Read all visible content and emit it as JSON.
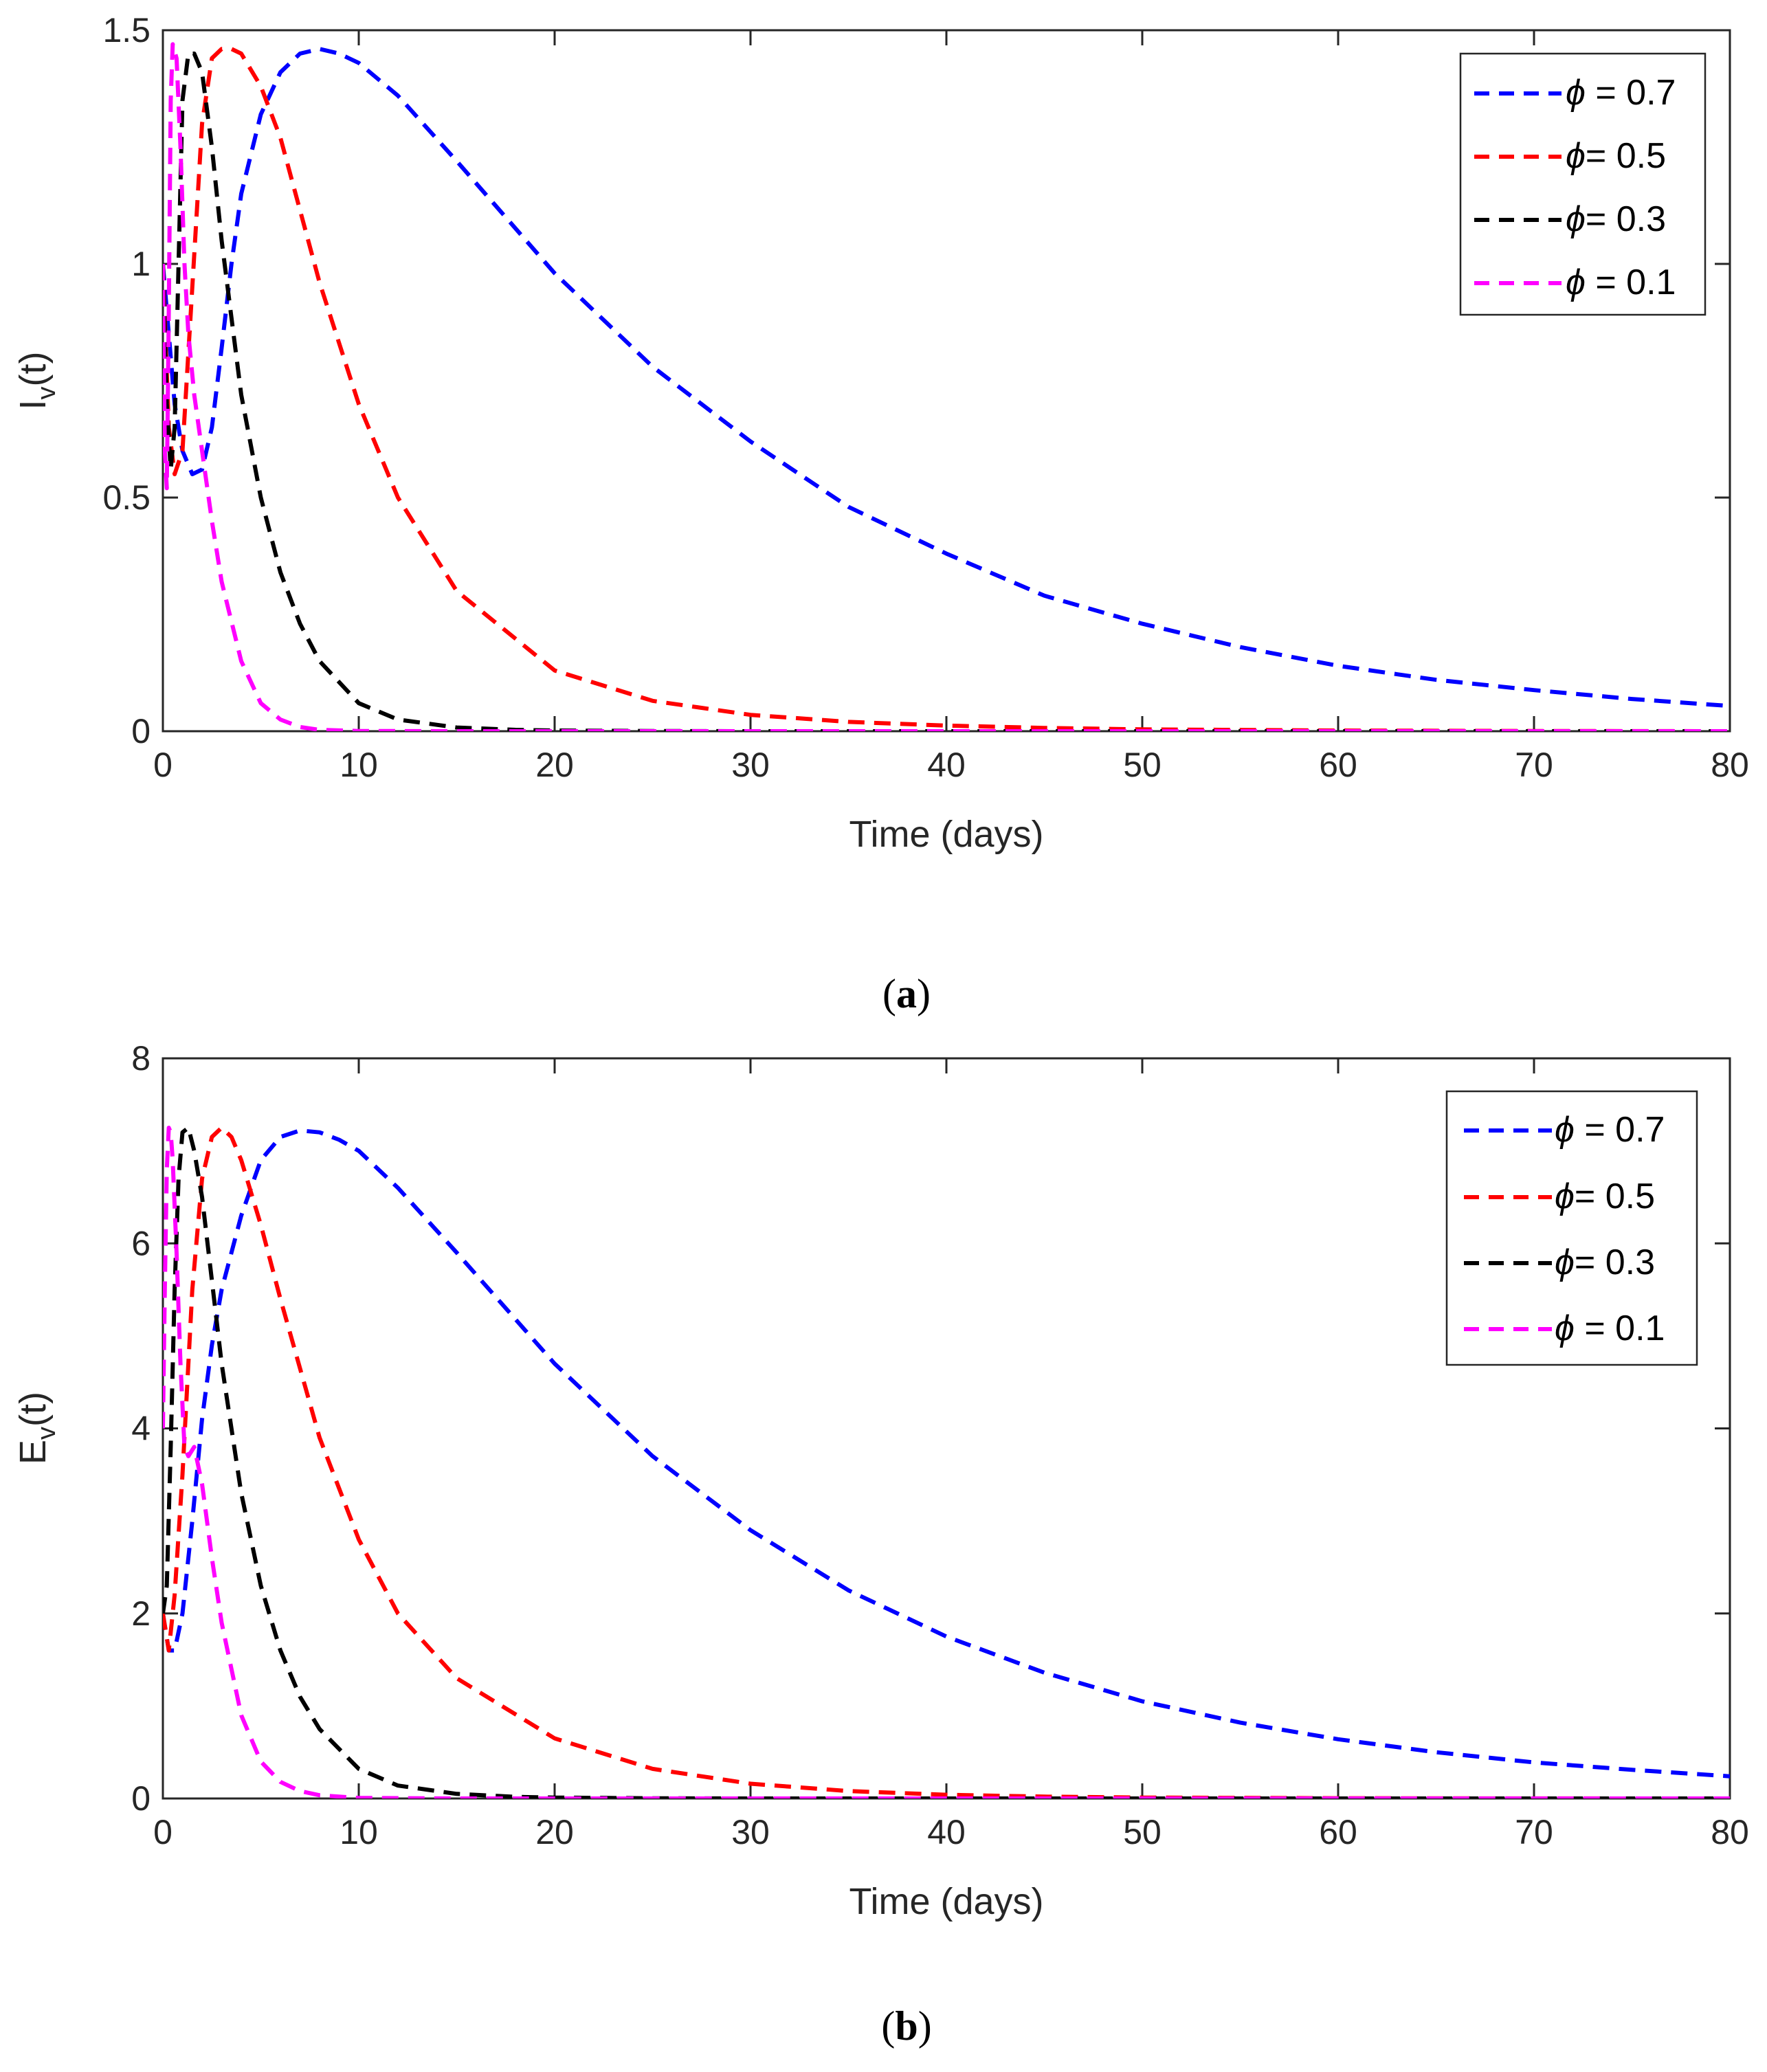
{
  "colors": {
    "series": [
      "#0000ff",
      "#ff0000",
      "#000000",
      "#ff00ff"
    ],
    "axis": "#262626",
    "background": "#ffffff"
  },
  "chart_data": [
    {
      "id": "a",
      "type": "line",
      "panel_label": "(a)",
      "panel_letter": "a",
      "xlabel": "Time (days)",
      "ylabel": "I_v(t)",
      "ylabel_main": "I",
      "ylabel_sub": "v",
      "ylabel_rest": "(t)",
      "xlim": [
        0,
        80
      ],
      "ylim": [
        0,
        1.5
      ],
      "xticks": [
        0,
        10,
        20,
        30,
        40,
        50,
        60,
        70,
        80
      ],
      "xtick_labels": [
        "0",
        "10",
        "20",
        "30",
        "40",
        "50",
        "60",
        "70",
        "80"
      ],
      "yticks": [
        0,
        0.5,
        1,
        1.5
      ],
      "ytick_labels": [
        "0",
        "0.5",
        "1",
        "1.5"
      ],
      "legend_position": "top-right",
      "series": [
        {
          "name": "ϕ = 0.7",
          "symbol": "ϕ",
          "rest": " = 0.7",
          "phi": 0.7,
          "x": [
            0,
            0.3,
            0.6,
            1,
            1.5,
            2,
            2.5,
            3,
            3.5,
            4,
            5,
            6,
            7,
            8,
            9,
            10,
            12,
            15,
            20,
            25,
            30,
            35,
            40,
            45,
            50,
            55,
            60,
            65,
            70,
            75,
            80
          ],
          "y": [
            1.0,
            0.85,
            0.7,
            0.6,
            0.55,
            0.56,
            0.65,
            0.82,
            1.0,
            1.15,
            1.32,
            1.41,
            1.45,
            1.46,
            1.45,
            1.43,
            1.36,
            1.22,
            0.98,
            0.78,
            0.62,
            0.48,
            0.38,
            0.29,
            0.23,
            0.18,
            0.14,
            0.11,
            0.088,
            0.069,
            0.054
          ]
        },
        {
          "name": "ϕ= 0.5",
          "symbol": "ϕ",
          "rest": "= 0.5",
          "phi": 0.5,
          "x": [
            0,
            0.3,
            0.6,
            1,
            1.5,
            2,
            2.5,
            3,
            3.5,
            4,
            5,
            6,
            8,
            10,
            12,
            15,
            20,
            25,
            30,
            35,
            40,
            45,
            50,
            60,
            70,
            80
          ],
          "y": [
            1.0,
            0.65,
            0.55,
            0.6,
            0.95,
            1.3,
            1.44,
            1.46,
            1.46,
            1.45,
            1.38,
            1.27,
            0.96,
            0.7,
            0.5,
            0.3,
            0.13,
            0.065,
            0.035,
            0.02,
            0.012,
            0.007,
            0.004,
            0.0015,
            0.0005,
            0.0
          ]
        },
        {
          "name": "ϕ= 0.3",
          "symbol": "ϕ",
          "rest": "= 0.3",
          "phi": 0.3,
          "x": [
            0,
            0.2,
            0.4,
            0.6,
            0.8,
            1.0,
            1.3,
            1.6,
            2.0,
            2.5,
            3,
            4,
            5,
            6,
            7,
            8,
            10,
            12,
            15,
            18,
            20,
            25,
            30,
            40,
            50,
            60,
            70,
            80
          ],
          "y": [
            1.0,
            0.7,
            0.56,
            0.65,
            1.0,
            1.35,
            1.45,
            1.45,
            1.41,
            1.25,
            1.05,
            0.72,
            0.5,
            0.34,
            0.23,
            0.15,
            0.06,
            0.025,
            0.008,
            0.003,
            0.0015,
            0.0005,
            0.0,
            0.0,
            0.0,
            0.0,
            0.0,
            0.0
          ]
        },
        {
          "name": "ϕ = 0.1",
          "symbol": "ϕ",
          "rest": " = 0.1",
          "phi": 0.1,
          "x": [
            0,
            0.1,
            0.2,
            0.3,
            0.4,
            0.5,
            0.7,
            0.9,
            1.1,
            1.3,
            1.6,
            2.0,
            2.5,
            3,
            4,
            5,
            6,
            7,
            8,
            10,
            15,
            20,
            30,
            40,
            50,
            60,
            70,
            80
          ],
          "y": [
            1.0,
            0.6,
            0.52,
            0.9,
            1.35,
            1.47,
            1.44,
            1.25,
            1.0,
            0.85,
            0.72,
            0.6,
            0.45,
            0.32,
            0.15,
            0.06,
            0.025,
            0.009,
            0.003,
            0.0005,
            0.0,
            0.0,
            0.0,
            0.0,
            0.0,
            0.0,
            0.0,
            0.0
          ]
        }
      ]
    },
    {
      "id": "b",
      "type": "line",
      "panel_label": "(b)",
      "panel_letter": "b",
      "xlabel": "Time (days)",
      "ylabel": "E_v(t)",
      "ylabel_main": "E",
      "ylabel_sub": "v",
      "ylabel_rest": "(t)",
      "xlim": [
        0,
        80
      ],
      "ylim": [
        0,
        8
      ],
      "xticks": [
        0,
        10,
        20,
        30,
        40,
        50,
        60,
        70,
        80
      ],
      "xtick_labels": [
        "0",
        "10",
        "20",
        "30",
        "40",
        "50",
        "60",
        "70",
        "80"
      ],
      "yticks": [
        0,
        2,
        4,
        6,
        8
      ],
      "ytick_labels": [
        "0",
        "2",
        "4",
        "6",
        "8"
      ],
      "legend_position": "top-right",
      "series": [
        {
          "name": "ϕ = 0.7",
          "symbol": "ϕ",
          "rest": " = 0.7",
          "phi": 0.7,
          "x": [
            0,
            0.3,
            0.6,
            1,
            1.5,
            2,
            2.5,
            3,
            4,
            5,
            6,
            7,
            8,
            9,
            10,
            12,
            15,
            20,
            25,
            30,
            35,
            40,
            45,
            50,
            55,
            60,
            65,
            70,
            75,
            80
          ],
          "y": [
            2.0,
            1.6,
            1.6,
            2.0,
            3.0,
            4.1,
            4.9,
            5.5,
            6.3,
            6.9,
            7.15,
            7.22,
            7.2,
            7.12,
            7.0,
            6.6,
            5.9,
            4.7,
            3.7,
            2.9,
            2.25,
            1.75,
            1.36,
            1.05,
            0.82,
            0.64,
            0.5,
            0.39,
            0.31,
            0.24
          ]
        },
        {
          "name": "ϕ= 0.5",
          "symbol": "ϕ",
          "rest": "= 0.5",
          "phi": 0.5,
          "x": [
            0,
            0.3,
            0.6,
            1,
            1.5,
            2,
            2.5,
            3,
            3.5,
            4,
            5,
            6,
            8,
            10,
            12,
            15,
            20,
            25,
            30,
            35,
            40,
            45,
            50,
            60,
            70,
            80
          ],
          "y": [
            2.0,
            1.6,
            2.2,
            3.5,
            5.5,
            6.7,
            7.15,
            7.25,
            7.15,
            6.9,
            6.2,
            5.4,
            3.9,
            2.8,
            2.0,
            1.3,
            0.65,
            0.32,
            0.16,
            0.08,
            0.04,
            0.02,
            0.01,
            0.003,
            0.001,
            0.0
          ]
        },
        {
          "name": "ϕ= 0.3",
          "symbol": "ϕ",
          "rest": "= 0.3",
          "phi": 0.3,
          "x": [
            0,
            0.2,
            0.4,
            0.6,
            0.8,
            1.0,
            1.3,
            1.6,
            2.0,
            2.5,
            3,
            4,
            5,
            6,
            7,
            8,
            10,
            12,
            15,
            18,
            20,
            25,
            30,
            40,
            50,
            60,
            70,
            80
          ],
          "y": [
            2.0,
            2.3,
            3.8,
            5.5,
            6.7,
            7.2,
            7.25,
            7.0,
            6.5,
            5.6,
            4.7,
            3.3,
            2.3,
            1.6,
            1.1,
            0.75,
            0.32,
            0.14,
            0.05,
            0.018,
            0.01,
            0.002,
            0.0,
            0.0,
            0.0,
            0.0,
            0.0,
            0.0
          ]
        },
        {
          "name": "ϕ = 0.1",
          "symbol": "ϕ",
          "rest": " = 0.1",
          "phi": 0.1,
          "x": [
            0,
            0.1,
            0.2,
            0.3,
            0.4,
            0.5,
            0.7,
            0.9,
            1.1,
            1.3,
            1.6,
            2.0,
            2.5,
            3,
            4,
            5,
            6,
            7,
            8,
            10,
            15,
            20,
            30,
            40,
            50,
            60,
            70,
            80
          ],
          "y": [
            4.0,
            5.5,
            6.8,
            7.25,
            7.2,
            6.9,
            5.9,
            4.7,
            3.8,
            3.7,
            3.8,
            3.4,
            2.6,
            1.9,
            0.9,
            0.4,
            0.18,
            0.08,
            0.035,
            0.006,
            0.0,
            0.0,
            0.0,
            0.0,
            0.0,
            0.0,
            0.0,
            0.0
          ]
        }
      ]
    }
  ]
}
